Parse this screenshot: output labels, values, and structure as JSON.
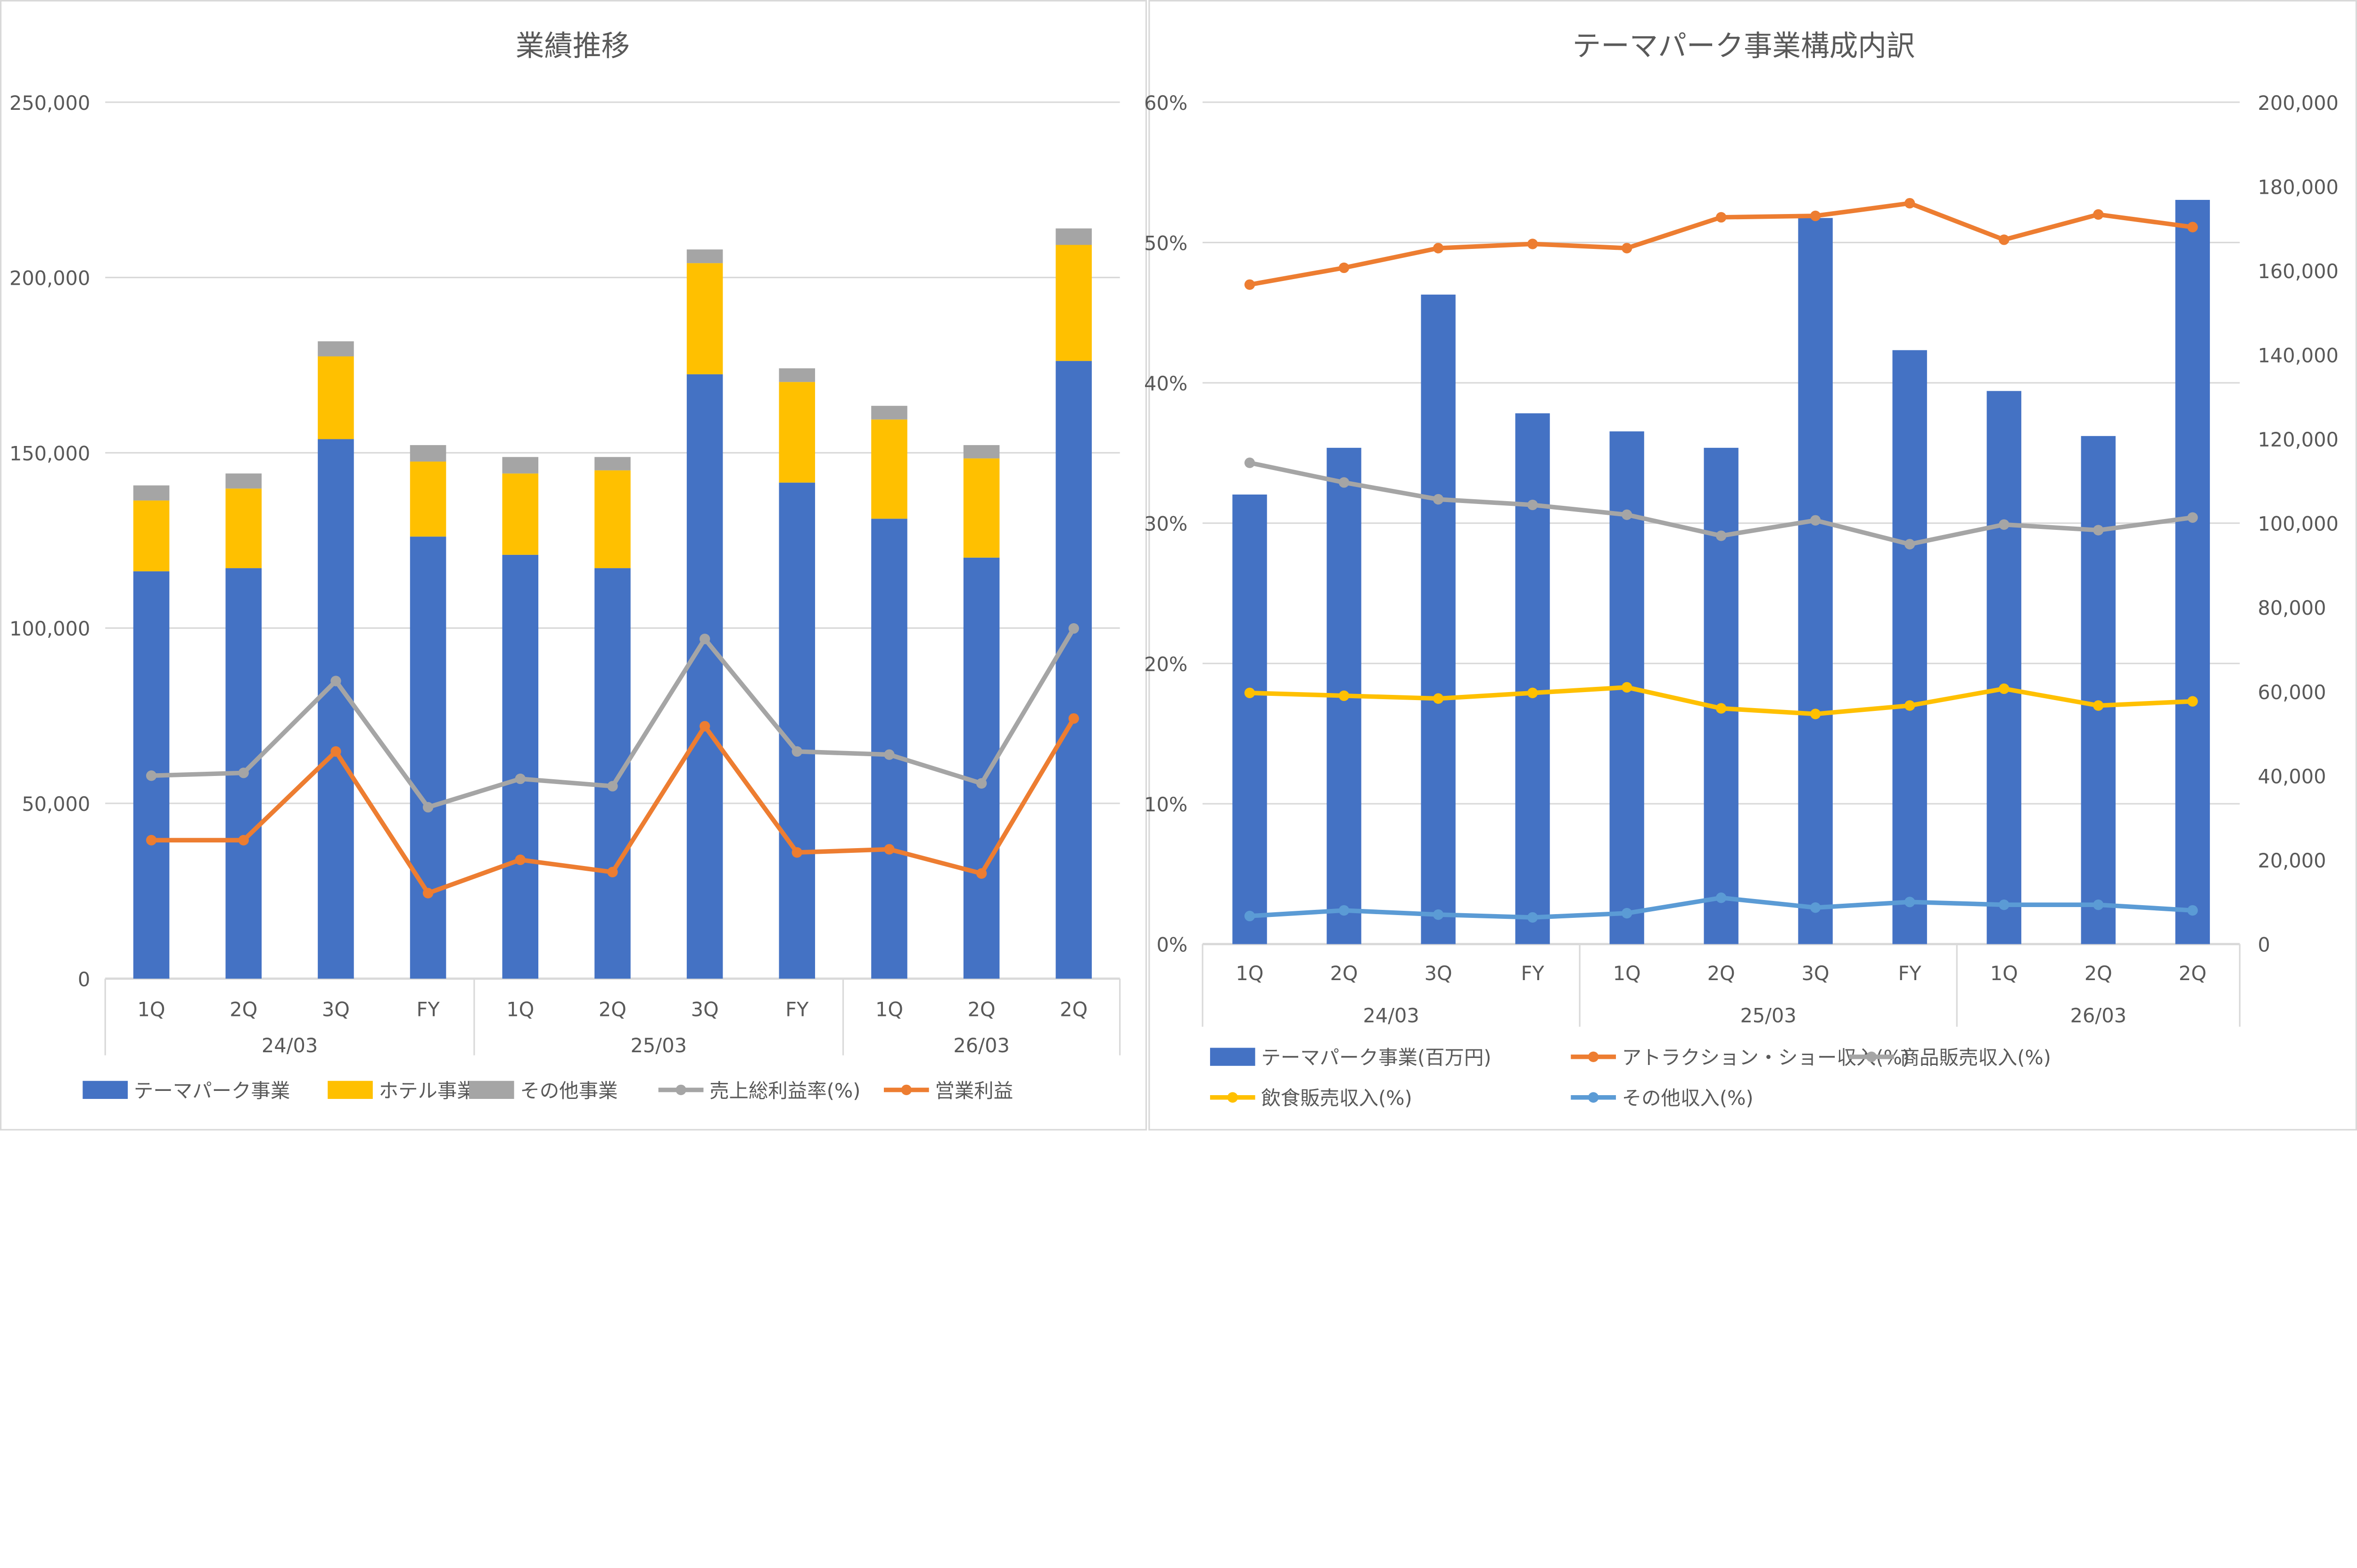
{
  "chart_data": [
    {
      "type": "bar",
      "stacked": true,
      "title": "業績推移",
      "categories": [
        "1Q",
        "2Q",
        "3Q",
        "FY",
        "1Q",
        "2Q",
        "3Q",
        "FY",
        "1Q",
        "2Q",
        "2Q"
      ],
      "groups": [
        {
          "label": "24/03",
          "count": 4
        },
        {
          "label": "25/03",
          "count": 4
        },
        {
          "label": "26/03",
          "count": 3
        }
      ],
      "ylim": [
        0,
        250000
      ],
      "yticks": [
        "0",
        "50,000",
        "100,000",
        "150,000",
        "200,000",
        "250,000"
      ],
      "grid": true,
      "legend_position": "bottom",
      "series": [
        {
          "name": "テーマパーク事業",
          "kind": "bar",
          "color": "#4472C4",
          "values": [
            116200,
            117100,
            153900,
            126100,
            120900,
            117100,
            172400,
            141500,
            131200,
            120100,
            176200
          ]
        },
        {
          "name": "ホテル事業",
          "kind": "bar",
          "color": "#FFC000",
          "values": [
            20200,
            22700,
            23600,
            21400,
            23200,
            27900,
            31700,
            28700,
            28300,
            28300,
            33100
          ]
        },
        {
          "name": "その他事業",
          "kind": "bar",
          "color": "#A5A5A5",
          "values": [
            4300,
            4300,
            4300,
            4700,
            4700,
            3800,
            3900,
            3900,
            3900,
            3800,
            4700
          ]
        },
        {
          "name": "売上総利益率(%)",
          "kind": "line",
          "color": "#A5A5A5",
          "values": [
            57900,
            58700,
            84900,
            48900,
            57000,
            54900,
            96900,
            64800,
            63900,
            55700,
            99900
          ]
        },
        {
          "name": "営業利益",
          "kind": "line",
          "color": "#ED7D31",
          "values": [
            39500,
            39500,
            64800,
            24400,
            33900,
            30400,
            72000,
            36000,
            36900,
            30000,
            74200
          ]
        }
      ]
    },
    {
      "type": "bar",
      "title": "テーマパーク事業構成内訳",
      "categories": [
        "1Q",
        "2Q",
        "3Q",
        "FY",
        "1Q",
        "2Q",
        "3Q",
        "FY",
        "1Q",
        "2Q",
        "2Q"
      ],
      "groups": [
        {
          "label": "24/03",
          "count": 4
        },
        {
          "label": "25/03",
          "count": 4
        },
        {
          "label": "26/03",
          "count": 3
        }
      ],
      "ylim": [
        0,
        60
      ],
      "yticks": [
        "0%",
        "10%",
        "20%",
        "30%",
        "40%",
        "50%",
        "60%"
      ],
      "y2lim": [
        0,
        200000
      ],
      "y2ticks": [
        "0",
        "20,000",
        "40,000",
        "60,000",
        "80,000",
        "100,000",
        "120,000",
        "140,000",
        "160,000",
        "180,000",
        "200,000"
      ],
      "grid": true,
      "legend_position": "bottom",
      "series": [
        {
          "name": "テーマパーク事業(百万円)",
          "kind": "bar",
          "axis": "right",
          "color": "#4472C4",
          "values": [
            106800,
            117900,
            154300,
            126100,
            121800,
            117900,
            172500,
            141100,
            131400,
            120700,
            176800
          ]
        },
        {
          "name": "アトラクション・ショー収入(%)",
          "kind": "line",
          "axis": "left",
          "color": "#ED7D31",
          "values": [
            47.0,
            48.2,
            49.6,
            49.9,
            49.6,
            51.8,
            51.9,
            52.8,
            50.2,
            52.0,
            51.1
          ]
        },
        {
          "name": "商品販売収入(%)",
          "kind": "line",
          "axis": "left",
          "color": "#A5A5A5",
          "values": [
            34.3,
            32.9,
            31.7,
            31.3,
            30.6,
            29.1,
            30.2,
            28.5,
            29.9,
            29.5,
            30.4
          ]
        },
        {
          "name": "飲食販売収入(%)",
          "kind": "line",
          "axis": "left",
          "color": "#FFC000",
          "values": [
            17.9,
            17.7,
            17.5,
            17.9,
            18.3,
            16.8,
            16.4,
            17.0,
            18.2,
            17.0,
            17.3
          ]
        },
        {
          "name": "その他収入(%)",
          "kind": "line",
          "axis": "left",
          "color": "#5B9BD5",
          "values": [
            2.0,
            2.4,
            2.1,
            1.9,
            2.2,
            3.3,
            2.6,
            3.0,
            2.8,
            2.8,
            2.4
          ]
        }
      ]
    }
  ]
}
